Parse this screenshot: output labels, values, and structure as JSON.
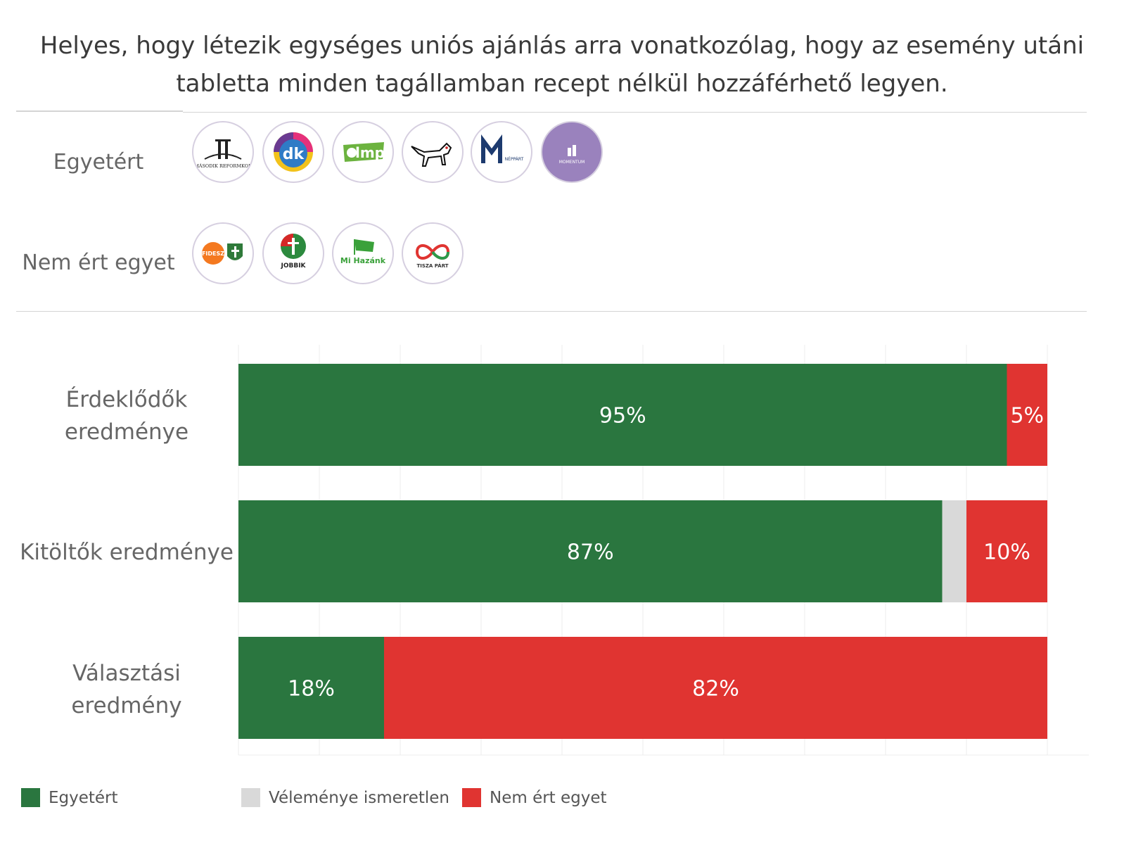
{
  "title_lines": [
    "Helyes, hogy létezik egységes uniós ajánlás arra vonatkozólag, hogy az esemény utáni",
    "tabletta minden tagállamban recept nélkül hozzáférhető legyen."
  ],
  "parties": {
    "agree_label": "Egyetért",
    "disagree_label": "Nem ért egyet",
    "agree": [
      {
        "icon": "masodik-reformkor-logo-icon",
        "text": "MÁSODIK REFORMKOR"
      },
      {
        "icon": "dk-logo-icon",
        "text": "dk"
      },
      {
        "icon": "lmp-logo-icon",
        "text": "lmp"
      },
      {
        "icon": "mkkp-dog-logo-icon",
        "text": ""
      },
      {
        "icon": "mmn-logo-icon",
        "text": "NÉPPÁRT"
      },
      {
        "icon": "momentum-logo-icon",
        "text": "MOMENTUM"
      }
    ],
    "disagree": [
      {
        "icon": "fidesz-kdnp-logo-icon",
        "text": "FIDESZ"
      },
      {
        "icon": "jobbik-logo-icon",
        "text": "JOBBIK"
      },
      {
        "icon": "mi-hazank-logo-icon",
        "text": "Mi Hazánk"
      },
      {
        "icon": "tisza-logo-icon",
        "text": "TISZA PÁRT"
      }
    ]
  },
  "chart_data": {
    "type": "bar",
    "orientation": "horizontal",
    "stacked": true,
    "categories": [
      [
        "Érdeklődők",
        "eredménye"
      ],
      [
        "Kitöltők eredménye"
      ],
      [
        "Választási",
        "eredmény"
      ]
    ],
    "series": [
      {
        "name": "Egyetért",
        "color": "#2a763f",
        "values": [
          95,
          87,
          18
        ]
      },
      {
        "name": "Véleménye ismeretlen",
        "color": "#d9d9d9",
        "values": [
          0,
          3,
          0
        ]
      },
      {
        "name": "Nem ért egyet",
        "color": "#e03431",
        "values": [
          5,
          10,
          82
        ]
      }
    ],
    "data_labels": [
      [
        "95%",
        "",
        "5%"
      ],
      [
        "87%",
        "",
        "10%"
      ],
      [
        "18%",
        "",
        "82%"
      ]
    ],
    "xlim": [
      0,
      100
    ],
    "grid": true,
    "legend_position": "bottom-left"
  },
  "colors": {
    "agree": "#2a763f",
    "unknown": "#d9d9d9",
    "disagree": "#e03431",
    "label_text": "#ffffff",
    "grid": "#ececec"
  }
}
